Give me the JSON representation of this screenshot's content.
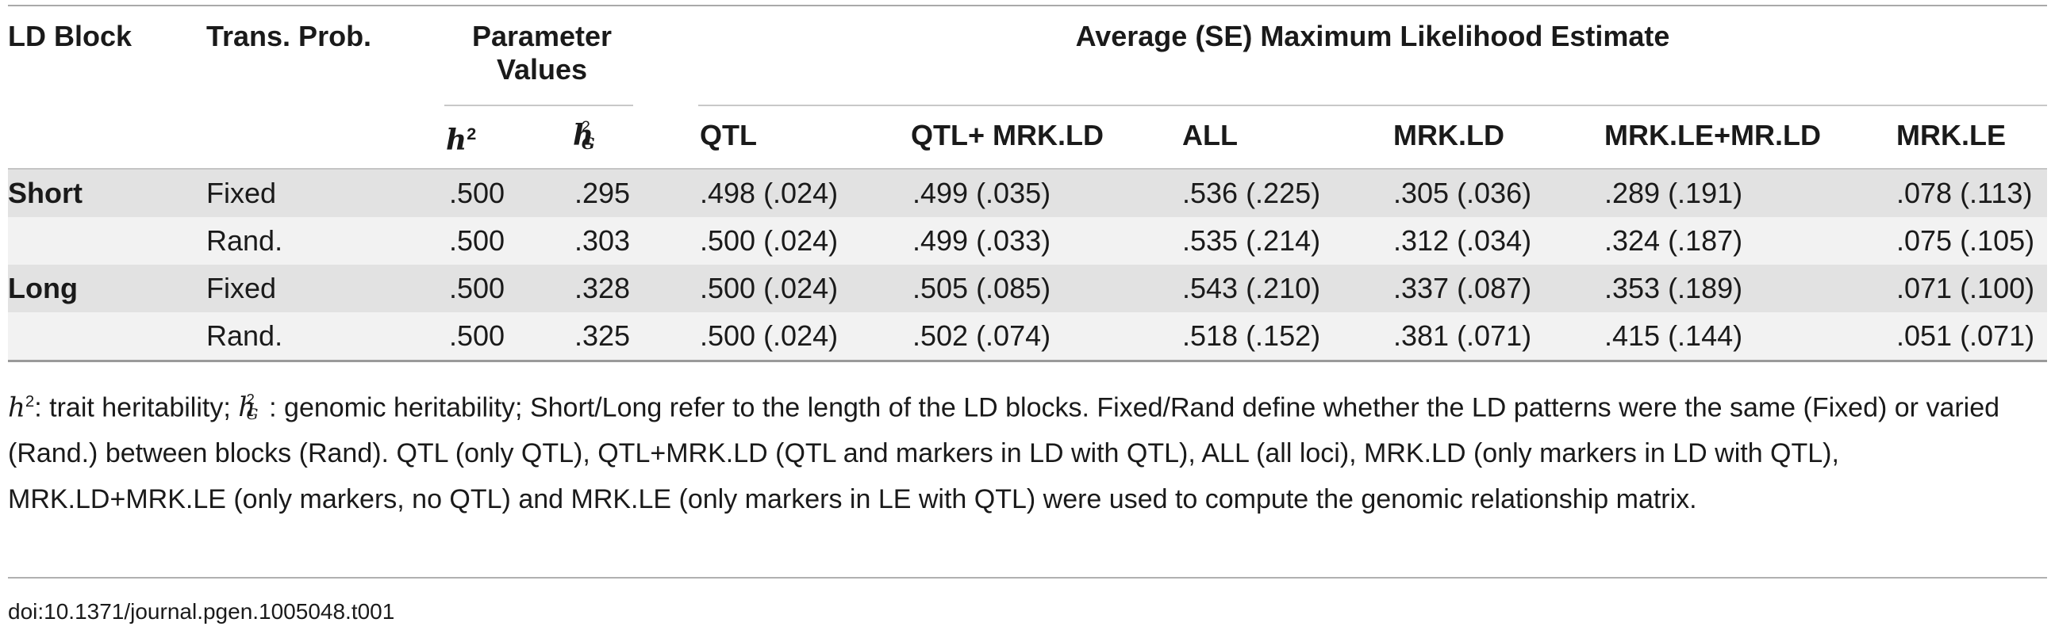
{
  "table": {
    "headers": {
      "ld_block": "LD Block",
      "trans_prob": "Trans. Prob.",
      "param_values": "Parameter Values",
      "avg_mle": "Average (SE) Maximum Likelihood Estimate",
      "h2_symbol": "h",
      "h2_sup": "2",
      "hg_symbol": "h",
      "hg_sup": "2",
      "hg_sub": "G",
      "estimates": [
        "QTL",
        "QTL+ MRK.LD",
        "ALL",
        "MRK.LD",
        "MRK.LE+MR.LD",
        "MRK.LE"
      ]
    },
    "rows": [
      {
        "block": "Short",
        "trans": "Fixed",
        "h2": ".500",
        "hg": ".295",
        "est": [
          ".498 (.024)",
          ".499 (.035)",
          ".536 (.225)",
          ".305 (.036)",
          ".289 (.191)",
          ".078 (.113)"
        ]
      },
      {
        "block": "",
        "trans": "Rand.",
        "h2": ".500",
        "hg": ".303",
        "est": [
          ".500 (.024)",
          ".499 (.033)",
          ".535 (.214)",
          ".312 (.034)",
          ".324 (.187)",
          ".075 (.105)"
        ]
      },
      {
        "block": "Long",
        "trans": "Fixed",
        "h2": ".500",
        "hg": ".328",
        "est": [
          ".500 (.024)",
          ".505 (.085)",
          ".543 (.210)",
          ".337 (.087)",
          ".353 (.189)",
          ".071 (.100)"
        ]
      },
      {
        "block": "",
        "trans": "Rand.",
        "h2": ".500",
        "hg": ".325",
        "est": [
          ".500 (.024)",
          ".502 (.074)",
          ".518 (.152)",
          ".381 (.071)",
          ".415 (.144)",
          ".051 (.071)"
        ]
      }
    ]
  },
  "footnote": {
    "h_symbol": "h",
    "h_sup": "2",
    "part1": ": trait heritability; ",
    "hg_symbol": "h",
    "hg_sup": "2",
    "hg_sub": "G",
    "part2": ": genomic heritability; Short/Long refer to the length of the LD blocks. Fixed/Rand define whether the LD patterns were the same (Fixed) or varied (Rand.) between blocks (Rand). QTL (only QTL), QTL+MRK.LD (QTL and markers in LD with QTL), ALL (all loci), MRK.LD (only markers in LD with QTL), MRK.LD+MRK.LE (only markers, no QTL) and MRK.LE (only markers in LE with QTL) were used to compute the genomic relationship matrix."
  },
  "doi": "doi:10.1371/journal.pgen.1005048.t001"
}
